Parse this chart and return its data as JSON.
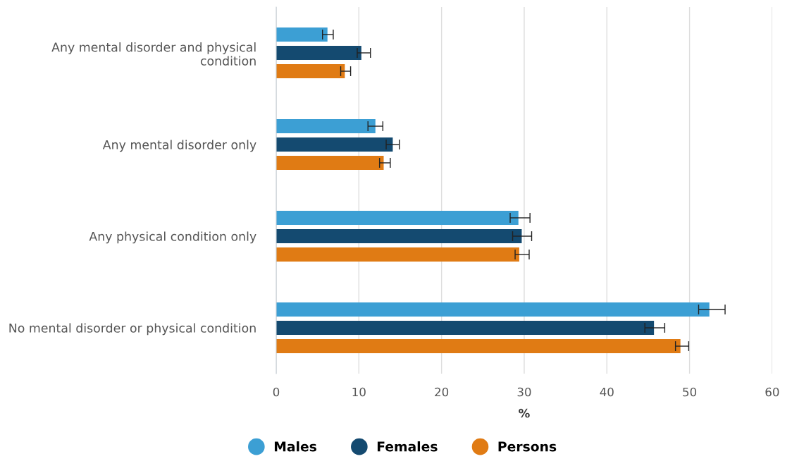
{
  "chart_data": {
    "type": "bar",
    "orientation": "horizontal",
    "xlabel": "%",
    "categories": [
      "Any mental disorder and physical condition",
      "Any mental disorder only",
      "Any physical condition only",
      "No mental disorder or physical condition"
    ],
    "series": [
      {
        "name": "Males",
        "color": "#3c9fd4",
        "values": [
          6.2,
          12.0,
          29.3,
          52.4
        ],
        "errors": [
          [
            5.6,
            6.9
          ],
          [
            11.1,
            12.9
          ],
          [
            28.3,
            30.7
          ],
          [
            51.1,
            54.3
          ]
        ]
      },
      {
        "name": "Females",
        "color": "#144a70",
        "values": [
          10.3,
          14.1,
          29.7,
          45.7
        ],
        "errors": [
          [
            9.8,
            11.4
          ],
          [
            13.3,
            14.9
          ],
          [
            28.6,
            30.9
          ],
          [
            44.6,
            47.0
          ]
        ]
      },
      {
        "name": "Persons",
        "color": "#e07b14",
        "values": [
          8.3,
          13.0,
          29.4,
          48.9
        ],
        "errors": [
          [
            7.8,
            9.0
          ],
          [
            12.5,
            13.8
          ],
          [
            28.9,
            30.6
          ],
          [
            48.3,
            49.9
          ]
        ]
      }
    ],
    "xlim": [
      0,
      60
    ],
    "xticks": [
      0,
      10,
      20,
      30,
      40,
      50,
      60
    ],
    "grid": "x",
    "legend": "bottom"
  }
}
